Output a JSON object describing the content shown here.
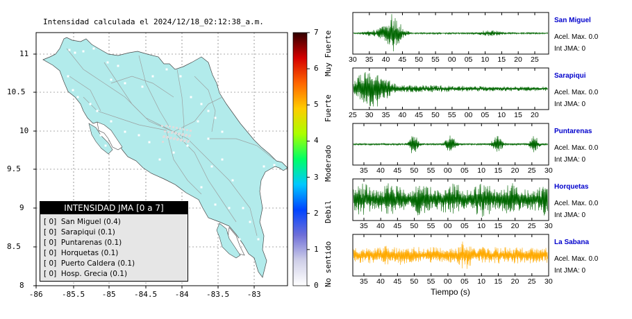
{
  "map": {
    "title": "Intensidad calculada el 2024/12/18_02:12:38_a.m.",
    "y_ticks": [
      "11",
      "10.5",
      "10",
      "9.5",
      "9",
      "8.5",
      "8"
    ],
    "x_ticks": [
      "-86",
      "-85.5",
      "-85",
      "-84.5",
      "-84",
      "-83.5",
      "-83"
    ],
    "land_color": "#b2ebeb",
    "scale": {
      "ticks": [
        "0",
        "1",
        "2",
        "3",
        "4",
        "5",
        "6",
        "7"
      ],
      "categories": [
        "No sentido",
        "Debil",
        "Moderado",
        "Fuerte",
        "Muy Fuerte"
      ]
    },
    "legend": {
      "header": "INTENSIDAD JMA [0 a 7]",
      "rows": [
        "[ 0]  San Miguel (0.4)",
        "[ 0]  Sarapiqui (0.1)",
        "[ 0]  Puntarenas (0.1)",
        "[ 0]  Horquetas (0.1)",
        "[ 0]  Puerto Caldera (0.1)",
        "[ 0]  Hosp. Grecia (0.1)"
      ]
    }
  },
  "seismo": {
    "xlabel": "Tiempo (s)",
    "trace_color_default": "#006600",
    "trace_color_highlight": "#ffaa00",
    "stations": [
      {
        "name": "San Miguel",
        "acel": "Acel. Max. 0.0",
        "int": "Int JMA: 0",
        "ticks": [
          "30",
          "35",
          "40",
          "45",
          "50",
          "55",
          "00",
          "05",
          "10",
          "15",
          "20",
          "25"
        ]
      },
      {
        "name": "Sarapiqui",
        "acel": "Acel. Max. 0.0",
        "int": "Int JMA: 0",
        "ticks": [
          "25",
          "30",
          "35",
          "40",
          "45",
          "50",
          "55",
          "00",
          "05",
          "10",
          "15",
          "20"
        ]
      },
      {
        "name": "Puntarenas",
        "acel": "Acel. Max. 0.0",
        "int": "Int JMA: 0",
        "ticks": [
          "35",
          "40",
          "45",
          "50",
          "55",
          "00",
          "05",
          "10",
          "15",
          "20",
          "25",
          "30"
        ]
      },
      {
        "name": "Horquetas",
        "acel": "Acel. Max. 0.0",
        "int": "Int JMA: 0",
        "ticks": [
          "35",
          "40",
          "45",
          "50",
          "55",
          "00",
          "05",
          "10",
          "15",
          "20",
          "25",
          "30"
        ]
      },
      {
        "name": "La Sabana",
        "acel": "Acel. Max. 0.0",
        "int": "Int JMA: 0",
        "ticks": [
          "35",
          "40",
          "45",
          "50",
          "55",
          "00",
          "05",
          "10",
          "15",
          "20",
          "25",
          "30"
        ]
      }
    ]
  },
  "chart_data": [
    {
      "type": "heatmap",
      "title": "Intensidad calculada el 2024/12/18_02:12:38_a.m.",
      "xlim": [
        -86,
        -82.6
      ],
      "ylim": [
        8,
        11.4
      ],
      "colorbar": {
        "range": [
          0,
          7
        ],
        "categories": [
          "No sentido",
          "Debil",
          "Moderado",
          "Fuerte",
          "Muy Fuerte"
        ]
      },
      "legend": [
        "San Miguel (0.4)",
        "Sarapiqui (0.1)",
        "Puntarenas (0.1)",
        "Horquetas (0.1)",
        "Puerto Caldera (0.1)",
        "Hosp. Grecia (0.1)"
      ]
    },
    {
      "type": "line",
      "xlabel": "Tiempo (s)",
      "series": [
        {
          "name": "San Miguel",
          "peak_intensity": 0,
          "max_accel": 0.0
        },
        {
          "name": "Sarapiqui",
          "peak_intensity": 0,
          "max_accel": 0.0
        },
        {
          "name": "Puntarenas",
          "peak_intensity": 0,
          "max_accel": 0.0
        },
        {
          "name": "Horquetas",
          "peak_intensity": 0,
          "max_accel": 0.0
        },
        {
          "name": "La Sabana",
          "peak_intensity": 0,
          "max_accel": 0.0
        }
      ]
    }
  ]
}
